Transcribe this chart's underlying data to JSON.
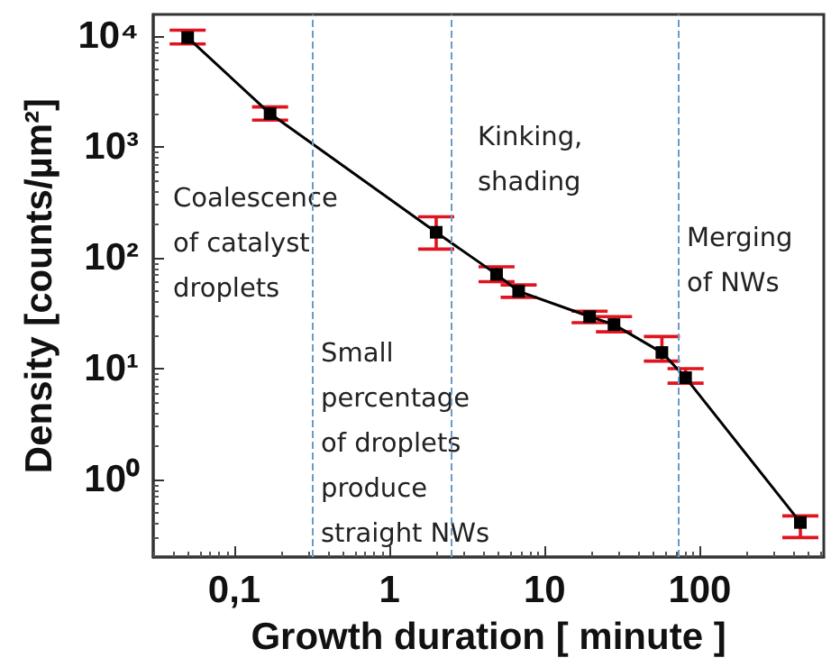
{
  "chart_data": {
    "type": "line",
    "xlabel": "Growth duration [ minute ]",
    "ylabel": "Density [counts/µm²]",
    "log": "xy",
    "xlim": [
      0.03,
      630
    ],
    "xticks": [
      {
        "value": 0.1,
        "label": "0,1"
      },
      1,
      10,
      100
    ],
    "ylim": [
      0.2,
      15700
    ],
    "yticks": [
      {
        "value": 1,
        "label": "10⁰"
      },
      {
        "value": 10,
        "label": "10¹"
      },
      {
        "value": 100,
        "label": "10²"
      },
      {
        "value": 1000,
        "label": "10³"
      },
      {
        "value": 10000,
        "label": "10⁴"
      }
    ],
    "grid": false,
    "marker": "square",
    "line_style": "solid",
    "series": [
      {
        "color": "#000000",
        "x": [
          0.05,
          0.17,
          2.0,
          4.9,
          6.8,
          19.5,
          28,
          57,
          81,
          445
        ],
        "values": [
          9700,
          2000,
          170,
          71,
          50,
          29.5,
          25,
          14,
          8.3,
          0.41
        ],
        "errors": [
          [
            8500,
            11300
          ],
          [
            1750,
            2300
          ],
          [
            120,
            235
          ],
          [
            61,
            83
          ],
          [
            44,
            57
          ],
          [
            26,
            33
          ],
          [
            21.5,
            29.5
          ],
          [
            11.7,
            19.5
          ],
          [
            7.4,
            10
          ],
          [
            0.3,
            0.47
          ]
        ]
      }
    ],
    "ref_lines": [
      {
        "axis": "x",
        "value": 0.32,
        "color": "#6a9ac8",
        "line_style": "dashed"
      },
      {
        "axis": "x",
        "value": 2.5,
        "color": "#6a9ac8",
        "line_style": "dashed"
      },
      {
        "axis": "x",
        "value": 72,
        "color": "#6a9ac8",
        "line_style": "dashed"
      }
    ],
    "annotations": [
      "Coalescence\nof catalyst\ndroplets",
      "Small\npercentage\nof droplets\nproduce\nstraight NWs",
      "Kinking,\nshading",
      "Merging\nof NWs"
    ]
  }
}
